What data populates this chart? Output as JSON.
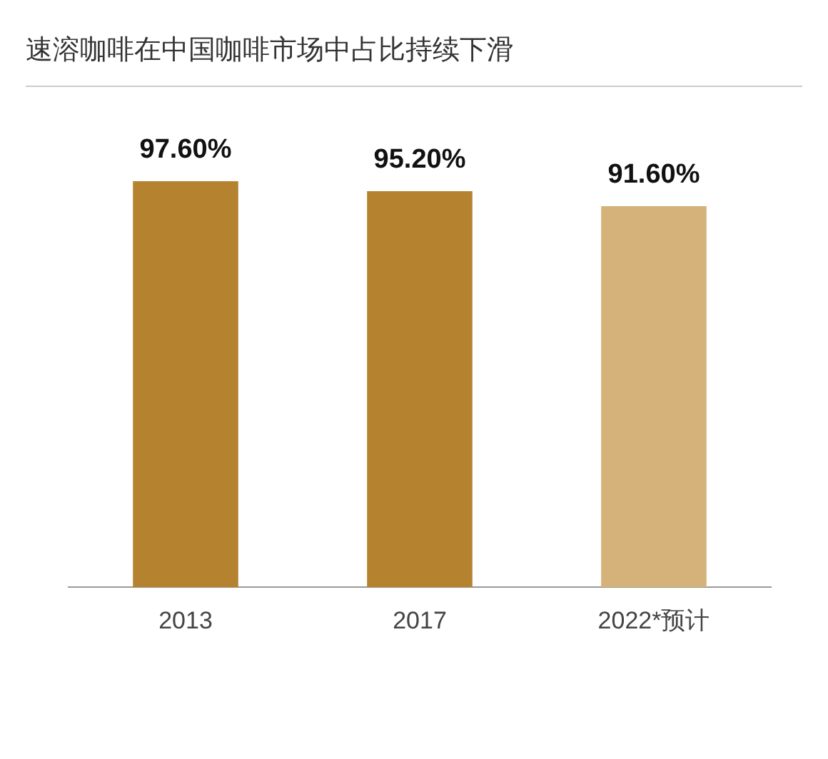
{
  "chart_data": {
    "type": "bar",
    "title": "速溶咖啡在中国咖啡市场中占比持续下滑",
    "categories": [
      "2013",
      "2017",
      "2022*预计"
    ],
    "values": [
      97.6,
      95.2,
      91.6
    ],
    "colors": [
      "#b5832f",
      "#b5832f",
      "#d4b27a"
    ],
    "value_labels": [
      "97.60%",
      "95.20%",
      "91.60%"
    ],
    "grid": false
  }
}
